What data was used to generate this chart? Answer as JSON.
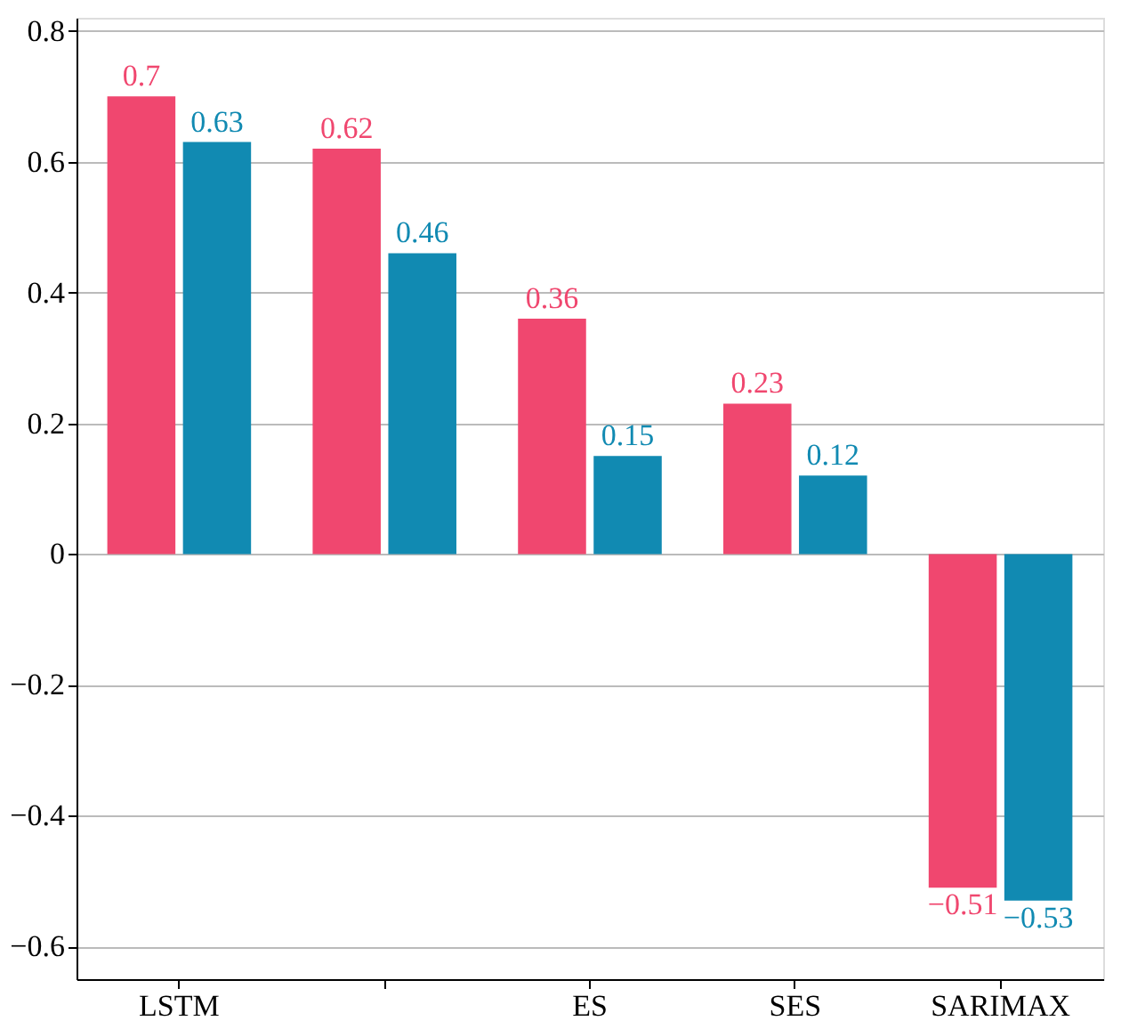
{
  "chart_data": {
    "type": "bar",
    "categories": [
      "LSTM",
      null,
      "ES",
      "SES",
      "SARIMAX"
    ],
    "series": [
      {
        "color": "#f0476f",
        "values": [
          0.7,
          0.62,
          0.36,
          0.23,
          -0.51
        ],
        "value_labels": [
          "0.7",
          "0.62",
          "0.36",
          "0.23",
          "−0.51"
        ]
      },
      {
        "color": "#118ab2",
        "values": [
          0.63,
          0.46,
          0.15,
          0.12,
          -0.53
        ],
        "value_labels": [
          "0.63",
          "0.46",
          "0.15",
          "0.12",
          "−0.53"
        ]
      }
    ],
    "ylim": [
      -0.65,
      0.82
    ],
    "yticks": [
      {
        "value": -0.6,
        "label": "−0.6"
      },
      {
        "value": -0.4,
        "label": "−0.4"
      },
      {
        "value": -0.2,
        "label": "−0.2"
      },
      0,
      0.2,
      0.4,
      0.6,
      0.8
    ],
    "grid": "y",
    "legend": false
  }
}
